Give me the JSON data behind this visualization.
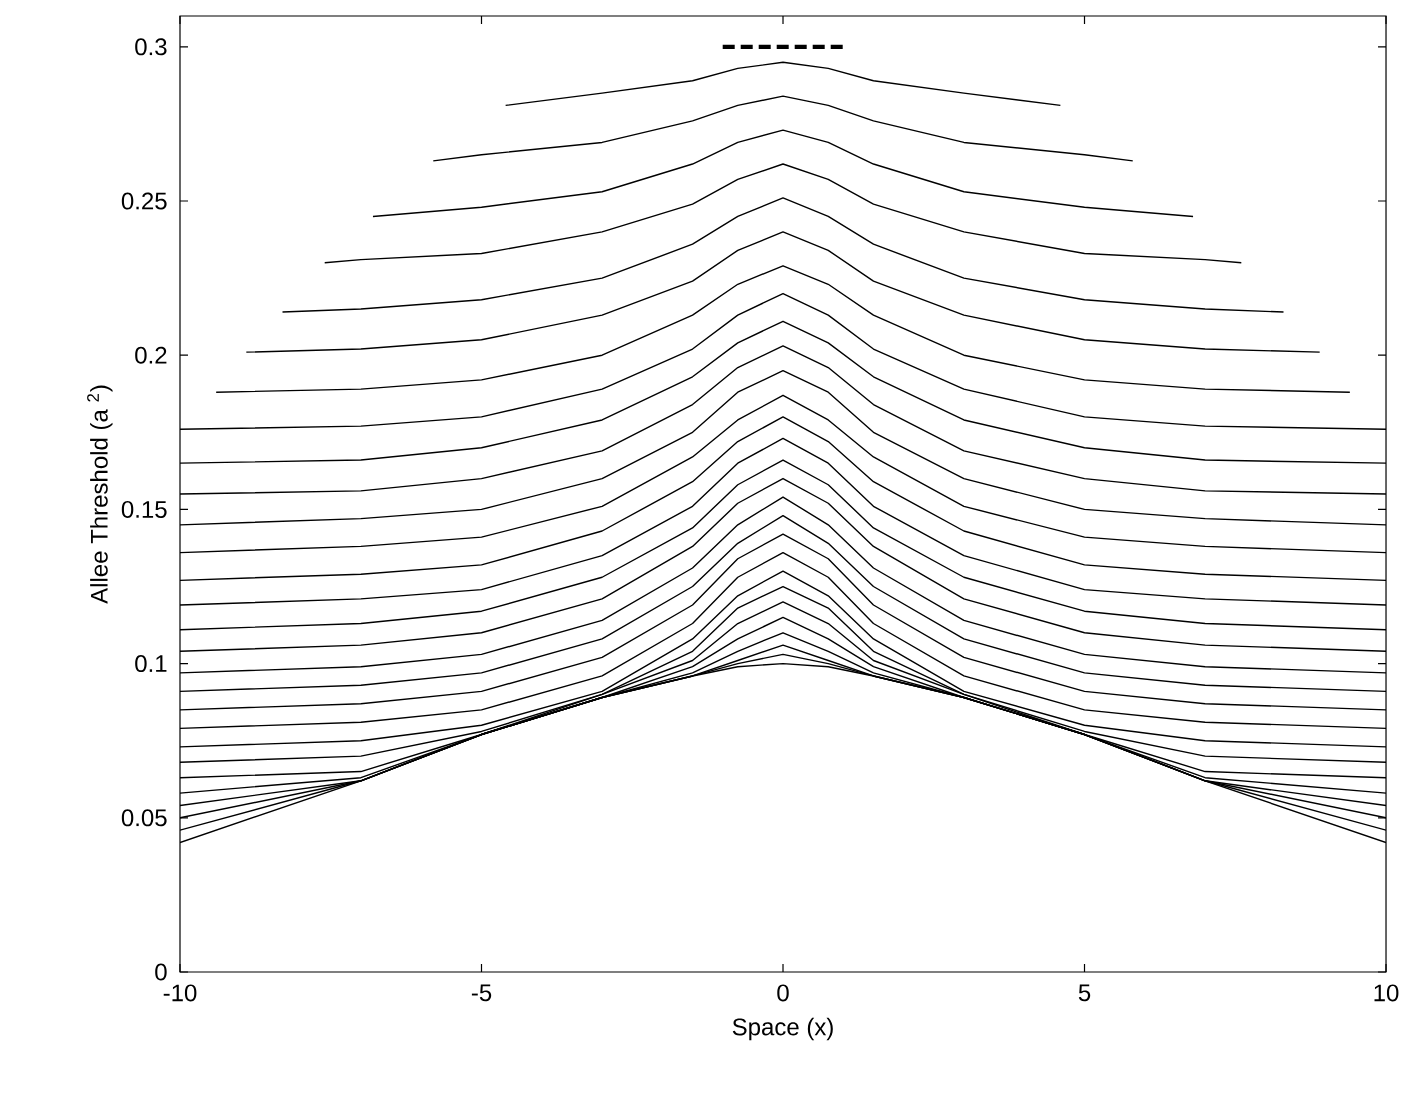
{
  "chart_data": {
    "type": "line",
    "xlabel": "Space (x)",
    "ylabel": "Allee Threshold (a $^{2}$)",
    "xlim": [
      -10,
      10
    ],
    "ylim": [
      0,
      0.31
    ],
    "xticks": [
      -10,
      -5,
      0,
      5,
      10
    ],
    "yticks": [
      0,
      0.05,
      0.1,
      0.15,
      0.2,
      0.25,
      0.3
    ],
    "x": [
      -10,
      -7,
      -5,
      -3,
      -1.5,
      -0.75,
      0,
      0.75,
      1.5,
      3,
      5,
      7,
      10
    ],
    "series": [
      {
        "color": "#000000",
        "line_style": "dashed",
        "x": [
          -1,
          1
        ],
        "values": [
          0.3,
          0.3
        ]
      },
      {
        "color": "#000000",
        "x": [
          -4.6,
          -3,
          -1.5,
          -0.75,
          0,
          0.75,
          1.5,
          3,
          4.6
        ],
        "values": [
          0.281,
          0.285,
          0.289,
          0.293,
          0.295,
          0.293,
          0.289,
          0.285,
          0.281
        ]
      },
      {
        "color": "#000000",
        "x": [
          -5.8,
          -5,
          -3,
          -1.5,
          -0.75,
          0,
          0.75,
          1.5,
          3,
          5,
          5.8
        ],
        "values": [
          0.263,
          0.265,
          0.269,
          0.276,
          0.281,
          0.284,
          0.281,
          0.276,
          0.269,
          0.265,
          0.263
        ]
      },
      {
        "color": "#000000",
        "x": [
          -6.8,
          -5,
          -3,
          -1.5,
          -0.75,
          0,
          0.75,
          1.5,
          3,
          5,
          6.8
        ],
        "values": [
          0.245,
          0.248,
          0.253,
          0.262,
          0.269,
          0.273,
          0.269,
          0.262,
          0.253,
          0.248,
          0.245
        ]
      },
      {
        "color": "#000000",
        "x": [
          -7.6,
          -7,
          -5,
          -3,
          -1.5,
          -0.75,
          0,
          0.75,
          1.5,
          3,
          5,
          7,
          7.6
        ],
        "values": [
          0.23,
          0.231,
          0.233,
          0.24,
          0.249,
          0.257,
          0.262,
          0.257,
          0.249,
          0.24,
          0.233,
          0.231,
          0.23
        ]
      },
      {
        "color": "#000000",
        "x": [
          -8.3,
          -7,
          -5,
          -3,
          -1.5,
          -0.75,
          0,
          0.75,
          1.5,
          3,
          5,
          7,
          8.3
        ],
        "values": [
          0.214,
          0.215,
          0.218,
          0.225,
          0.236,
          0.245,
          0.251,
          0.245,
          0.236,
          0.225,
          0.218,
          0.215,
          0.214
        ]
      },
      {
        "color": "#000000",
        "x": [
          -8.9,
          -7,
          -5,
          -3,
          -1.5,
          -0.75,
          0,
          0.75,
          1.5,
          3,
          5,
          7,
          8.9
        ],
        "values": [
          0.201,
          0.202,
          0.205,
          0.213,
          0.224,
          0.234,
          0.24,
          0.234,
          0.224,
          0.213,
          0.205,
          0.202,
          0.201
        ]
      },
      {
        "color": "#000000",
        "x": [
          -9.4,
          -7,
          -5,
          -3,
          -1.5,
          -0.75,
          0,
          0.75,
          1.5,
          3,
          5,
          7,
          9.4
        ],
        "values": [
          0.188,
          0.189,
          0.192,
          0.2,
          0.213,
          0.223,
          0.229,
          0.223,
          0.213,
          0.2,
          0.192,
          0.189,
          0.188
        ]
      },
      {
        "color": "#000000",
        "values": [
          0.176,
          0.177,
          0.18,
          0.189,
          0.202,
          0.213,
          0.22,
          0.213,
          0.202,
          0.189,
          0.18,
          0.177,
          0.176
        ]
      },
      {
        "color": "#000000",
        "values": [
          0.165,
          0.166,
          0.17,
          0.179,
          0.193,
          0.204,
          0.211,
          0.204,
          0.193,
          0.179,
          0.17,
          0.166,
          0.165
        ]
      },
      {
        "color": "#000000",
        "values": [
          0.155,
          0.156,
          0.16,
          0.169,
          0.184,
          0.196,
          0.203,
          0.196,
          0.184,
          0.169,
          0.16,
          0.156,
          0.155
        ]
      },
      {
        "color": "#000000",
        "values": [
          0.145,
          0.147,
          0.15,
          0.16,
          0.175,
          0.188,
          0.195,
          0.188,
          0.175,
          0.16,
          0.15,
          0.147,
          0.145
        ]
      },
      {
        "color": "#000000",
        "values": [
          0.136,
          0.138,
          0.141,
          0.151,
          0.167,
          0.179,
          0.187,
          0.179,
          0.167,
          0.151,
          0.141,
          0.138,
          0.136
        ]
      },
      {
        "color": "#000000",
        "values": [
          0.127,
          0.129,
          0.132,
          0.143,
          0.159,
          0.172,
          0.18,
          0.172,
          0.159,
          0.143,
          0.132,
          0.129,
          0.127
        ]
      },
      {
        "color": "#000000",
        "values": [
          0.119,
          0.121,
          0.124,
          0.135,
          0.151,
          0.165,
          0.173,
          0.165,
          0.151,
          0.135,
          0.124,
          0.121,
          0.119
        ]
      },
      {
        "color": "#000000",
        "values": [
          0.111,
          0.113,
          0.117,
          0.128,
          0.144,
          0.158,
          0.166,
          0.158,
          0.144,
          0.128,
          0.117,
          0.113,
          0.111
        ]
      },
      {
        "color": "#000000",
        "values": [
          0.104,
          0.106,
          0.11,
          0.121,
          0.138,
          0.152,
          0.16,
          0.152,
          0.138,
          0.121,
          0.11,
          0.106,
          0.104
        ]
      },
      {
        "color": "#000000",
        "values": [
          0.097,
          0.099,
          0.103,
          0.114,
          0.131,
          0.145,
          0.154,
          0.145,
          0.131,
          0.114,
          0.103,
          0.099,
          0.097
        ]
      },
      {
        "color": "#000000",
        "values": [
          0.091,
          0.093,
          0.097,
          0.108,
          0.125,
          0.139,
          0.148,
          0.139,
          0.125,
          0.108,
          0.097,
          0.093,
          0.091
        ]
      },
      {
        "color": "#000000",
        "values": [
          0.085,
          0.087,
          0.091,
          0.102,
          0.119,
          0.134,
          0.142,
          0.134,
          0.119,
          0.102,
          0.091,
          0.087,
          0.085
        ]
      },
      {
        "color": "#000000",
        "values": [
          0.079,
          0.081,
          0.085,
          0.096,
          0.113,
          0.128,
          0.136,
          0.128,
          0.113,
          0.096,
          0.085,
          0.081,
          0.079
        ]
      },
      {
        "color": "#000000",
        "values": [
          0.073,
          0.075,
          0.08,
          0.091,
          0.108,
          0.122,
          0.13,
          0.122,
          0.108,
          0.091,
          0.08,
          0.075,
          0.073
        ]
      },
      {
        "color": "#000000",
        "values": [
          0.068,
          0.07,
          0.078,
          0.09,
          0.104,
          0.118,
          0.125,
          0.118,
          0.104,
          0.09,
          0.078,
          0.07,
          0.068
        ]
      },
      {
        "color": "#000000",
        "values": [
          0.063,
          0.065,
          0.077,
          0.09,
          0.101,
          0.113,
          0.12,
          0.113,
          0.101,
          0.09,
          0.077,
          0.065,
          0.063
        ]
      },
      {
        "color": "#000000",
        "values": [
          0.058,
          0.063,
          0.077,
          0.089,
          0.099,
          0.108,
          0.115,
          0.108,
          0.099,
          0.089,
          0.077,
          0.063,
          0.058
        ]
      },
      {
        "color": "#000000",
        "values": [
          0.054,
          0.062,
          0.077,
          0.089,
          0.097,
          0.104,
          0.11,
          0.104,
          0.097,
          0.089,
          0.077,
          0.062,
          0.054
        ]
      },
      {
        "color": "#000000",
        "values": [
          0.05,
          0.062,
          0.077,
          0.089,
          0.096,
          0.101,
          0.106,
          0.101,
          0.096,
          0.089,
          0.077,
          0.062,
          0.05
        ]
      },
      {
        "color": "#000000",
        "values": [
          0.046,
          0.062,
          0.077,
          0.089,
          0.096,
          0.1,
          0.103,
          0.1,
          0.096,
          0.089,
          0.077,
          0.062,
          0.046
        ]
      },
      {
        "color": "#000000",
        "values": [
          0.042,
          0.062,
          0.077,
          0.089,
          0.096,
          0.099,
          0.1,
          0.099,
          0.096,
          0.089,
          0.077,
          0.062,
          0.042
        ]
      }
    ]
  }
}
